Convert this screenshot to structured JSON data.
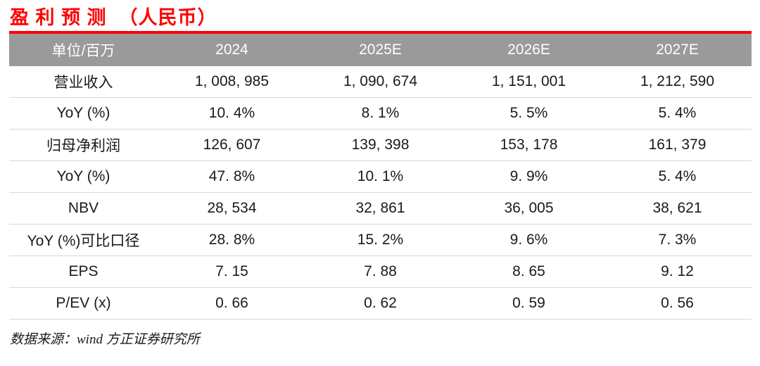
{
  "title": "盈 利 预 测  （人民币）",
  "table": {
    "columns": [
      "单位/百万",
      "2024",
      "2025E",
      "2026E",
      "2027E"
    ],
    "rows": [
      {
        "label": "营业收入",
        "values": [
          "1, 008, 985",
          "1, 090, 674",
          "1, 151, 001",
          "1, 212, 590"
        ]
      },
      {
        "label": "YoY (%)",
        "values": [
          "10. 4%",
          "8. 1%",
          "5. 5%",
          "5. 4%"
        ]
      },
      {
        "label": "归母净利润",
        "values": [
          "126, 607",
          "139, 398",
          "153, 178",
          "161, 379"
        ]
      },
      {
        "label": "YoY (%)",
        "values": [
          "47. 8%",
          "10. 1%",
          "9. 9%",
          "5. 4%"
        ]
      },
      {
        "label": "NBV",
        "values": [
          "28, 534",
          "32, 861",
          "36, 005",
          "38, 621"
        ]
      },
      {
        "label": "YoY (%)可比口径",
        "values": [
          "28. 8%",
          "15. 2%",
          "9. 6%",
          "7. 3%"
        ]
      },
      {
        "label": "EPS",
        "values": [
          "7. 15",
          "7. 88",
          "8. 65",
          "9. 12"
        ]
      },
      {
        "label": "P/EV (x)",
        "values": [
          "0. 66",
          "0. 62",
          "0. 59",
          "0. 56"
        ]
      }
    ]
  },
  "source": "数据来源：wind 方正证券研究所",
  "colors": {
    "accent_red": "#FE0000",
    "header_background": "#9A9A9A",
    "header_text": "#FFFFFF",
    "row_divider": "#D8D8D8",
    "body_text": "#1A1A1A"
  }
}
